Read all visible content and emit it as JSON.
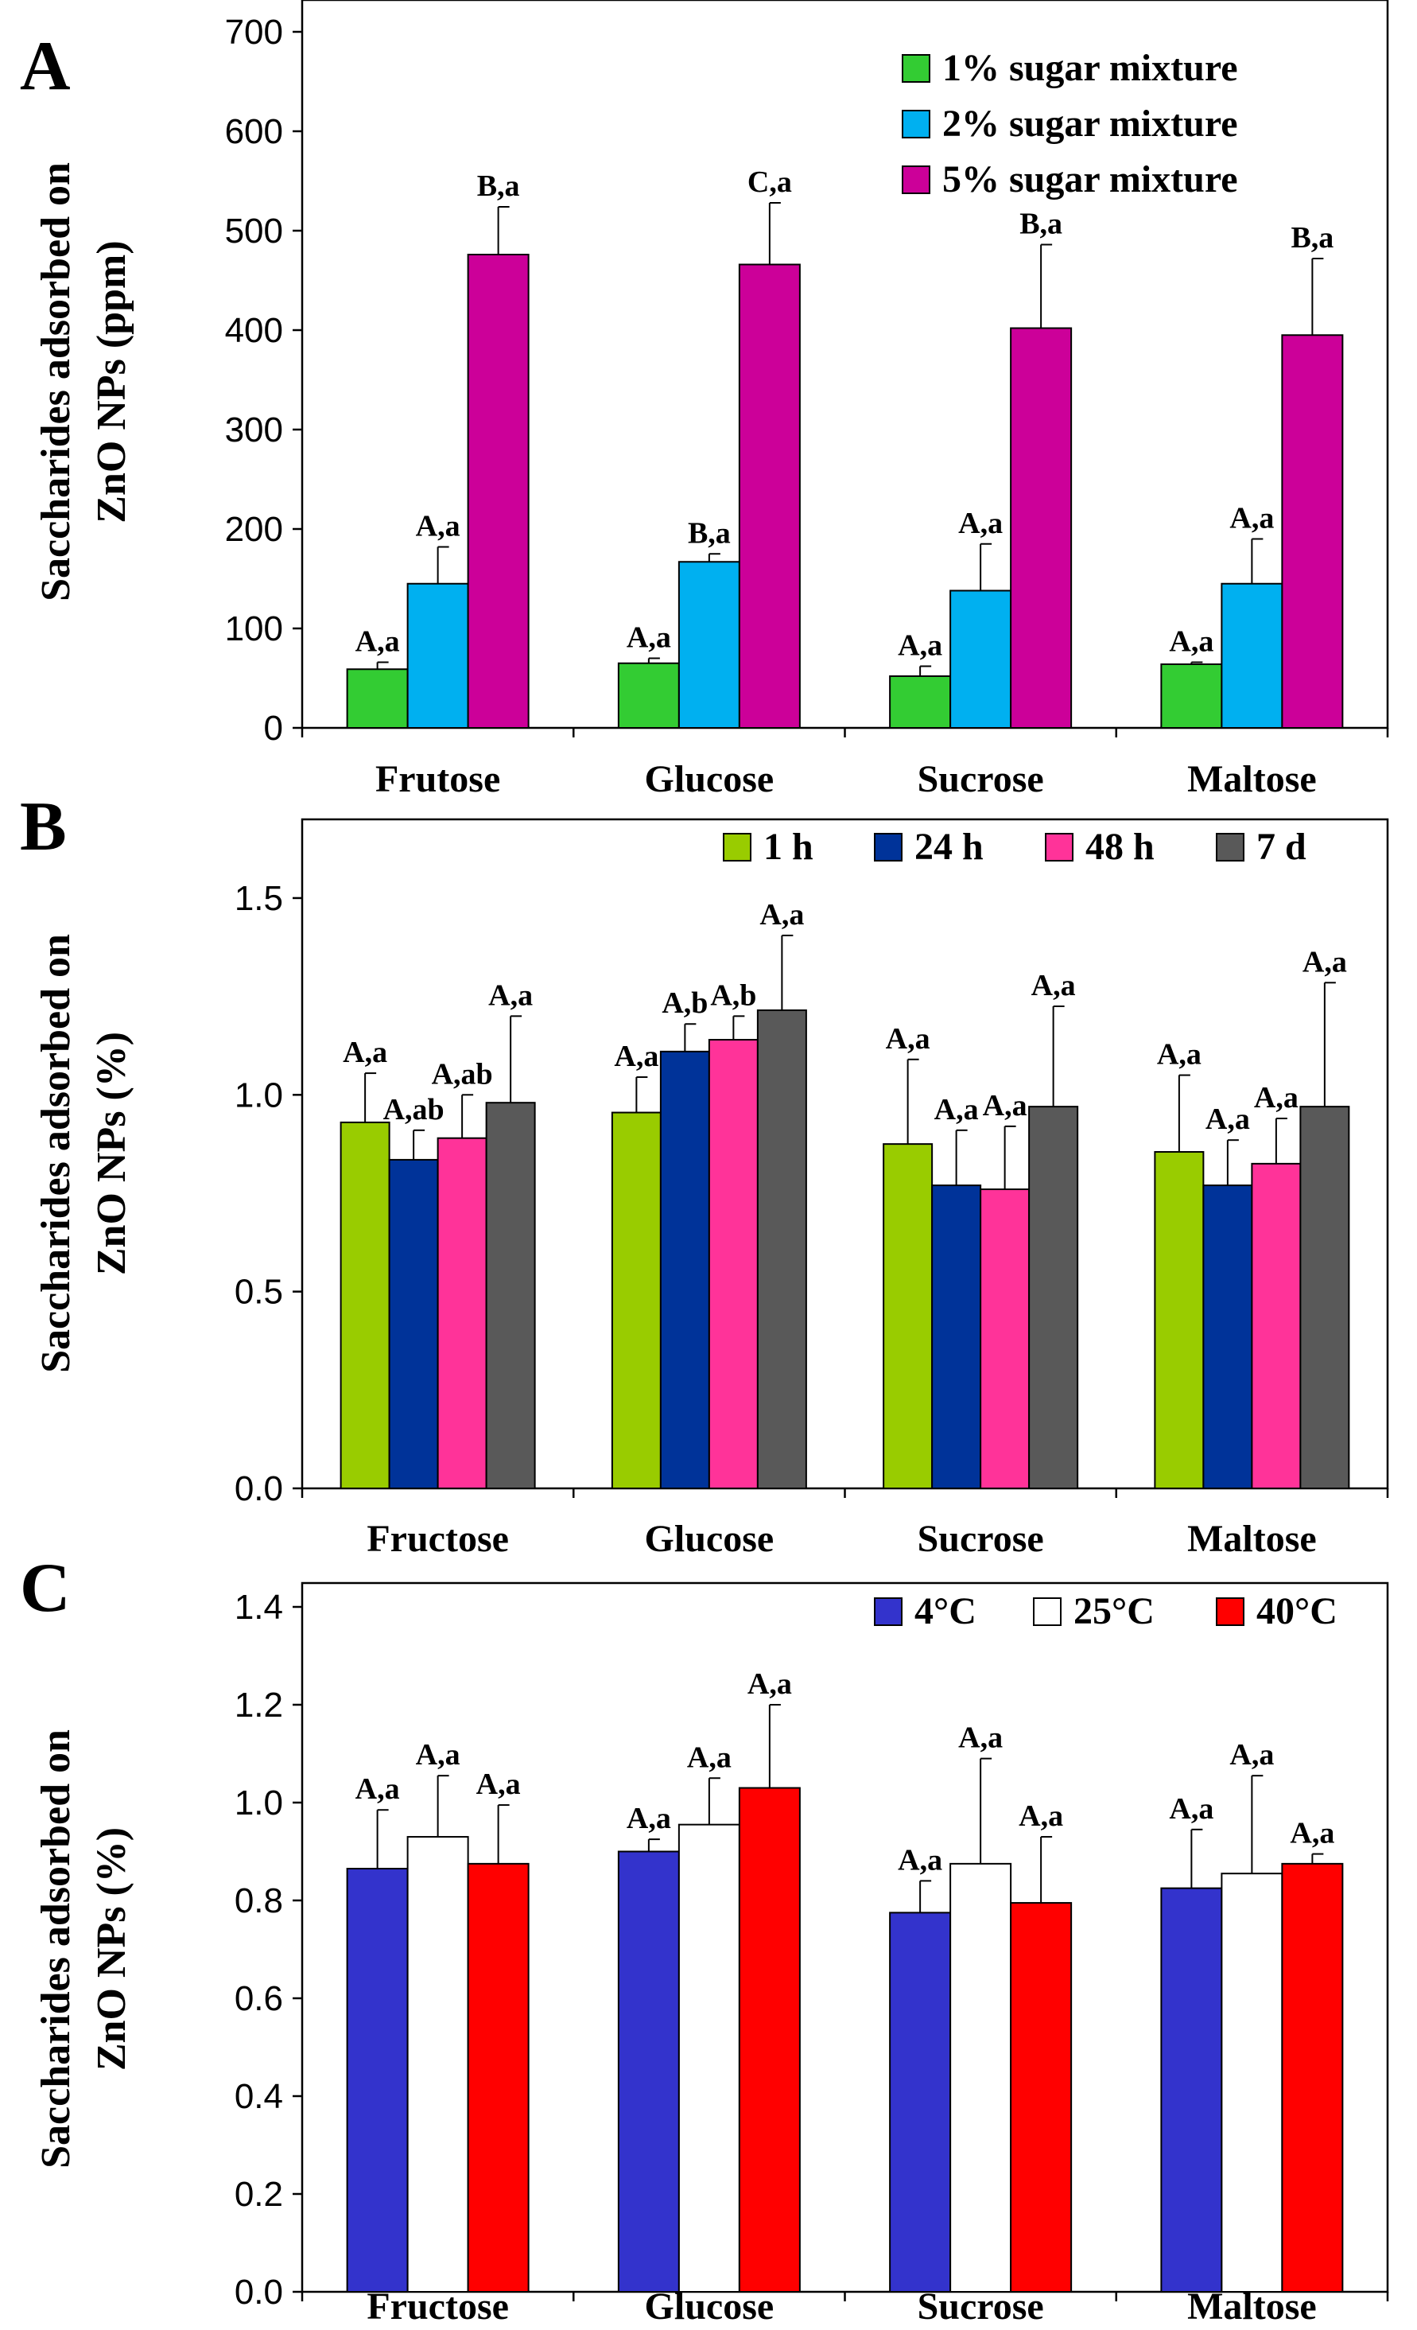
{
  "chart_data": [
    {
      "panel": "A",
      "type": "bar",
      "ylabel_lines": [
        "Saccharides adsorbed on",
        "ZnO NPs (ppm)"
      ],
      "categories": [
        "Frutose",
        "Glucose",
        "Sucrose",
        "Maltose"
      ],
      "ylim": [
        0,
        700
      ],
      "yticks": [
        "0",
        "100",
        "200",
        "300",
        "400",
        "500",
        "600",
        "700"
      ],
      "yticks_values": [
        0,
        100,
        200,
        300,
        400,
        500,
        600,
        700
      ],
      "legend_position": "top-right",
      "series": [
        {
          "name": "1% sugar mixture",
          "color": "#33cc33",
          "values": [
            59,
            65,
            52,
            64
          ],
          "errors": [
            7,
            5,
            10,
            2
          ],
          "labels": [
            "A,a",
            "A,a",
            "A,a",
            "A,a"
          ]
        },
        {
          "name": "2% sugar mixture",
          "color": "#00b0f0",
          "values": [
            145,
            167,
            138,
            145
          ],
          "errors": [
            37,
            8,
            47,
            45
          ],
          "labels": [
            "A,a",
            "B,a",
            "A,a",
            "A,a"
          ]
        },
        {
          "name": "5% sugar mixture",
          "color": "#cc0099",
          "values": [
            476,
            466,
            402,
            395
          ],
          "errors": [
            48,
            62,
            84,
            77
          ],
          "labels": [
            "B,a",
            "C,a",
            "B,a",
            "B,a"
          ]
        }
      ]
    },
    {
      "panel": "B",
      "type": "bar",
      "ylabel_lines": [
        "Saccharides adsorbed on",
        "ZnO NPs (%)"
      ],
      "categories": [
        "Fructose",
        "Glucose",
        "Sucrose",
        "Maltose"
      ],
      "ylim": [
        0,
        1.7
      ],
      "yticks": [
        "0.0",
        "0.5",
        "1.0",
        "1.5"
      ],
      "yticks_values": [
        0,
        0.5,
        1.0,
        1.5
      ],
      "legend_position": "top-right",
      "series": [
        {
          "name": "1 h",
          "color": "#99cc00",
          "values": [
            0.93,
            0.955,
            0.875,
            0.855
          ],
          "errors": [
            0.125,
            0.09,
            0.215,
            0.195
          ],
          "labels": [
            "A,a",
            "A,a",
            "A,a",
            "A,a"
          ]
        },
        {
          "name": "24 h",
          "color": "#003399",
          "values": [
            0.835,
            1.11,
            0.77,
            0.77
          ],
          "errors": [
            0.075,
            0.07,
            0.14,
            0.115
          ],
          "labels": [
            "A,ab",
            "A,b",
            "A,a",
            "A,a"
          ]
        },
        {
          "name": "48 h",
          "color": "#ff3399",
          "values": [
            0.89,
            1.14,
            0.76,
            0.825
          ],
          "errors": [
            0.11,
            0.06,
            0.16,
            0.115
          ],
          "labels": [
            "A,ab",
            "A,b",
            "A,a",
            "A,a"
          ]
        },
        {
          "name": "7 d",
          "color": "#595959",
          "values": [
            0.98,
            1.215,
            0.97,
            0.97
          ],
          "errors": [
            0.22,
            0.19,
            0.255,
            0.315
          ],
          "labels": [
            "A,a",
            "A,a",
            "A,a",
            "A,a"
          ]
        }
      ]
    },
    {
      "panel": "C",
      "type": "bar",
      "ylabel_lines": [
        "Saccharides adsorbed on",
        "ZnO NPs (%)"
      ],
      "categories": [
        "Fructose",
        "Glucose",
        "Sucrose",
        "Maltose"
      ],
      "ylim": [
        0,
        1.4
      ],
      "yticks": [
        "0.0",
        "0.2",
        "0.4",
        "0.6",
        "0.8",
        "1.0",
        "1.2",
        "1.4"
      ],
      "yticks_values": [
        0,
        0.2,
        0.4,
        0.6,
        0.8,
        1.0,
        1.2,
        1.4
      ],
      "legend_position": "top-right",
      "series": [
        {
          "name": "4°C",
          "color": "#3333cc",
          "values": [
            0.865,
            0.9,
            0.775,
            0.825
          ],
          "errors": [
            0.12,
            0.025,
            0.065,
            0.12
          ],
          "labels": [
            "A,a",
            "A,a",
            "A,a",
            "A,a"
          ]
        },
        {
          "name": "25°C",
          "color": "#ffffff",
          "values": [
            0.93,
            0.955,
            0.875,
            0.855
          ],
          "errors": [
            0.125,
            0.095,
            0.215,
            0.2
          ],
          "labels": [
            "A,a",
            "A,a",
            "A,a",
            "A,a"
          ]
        },
        {
          "name": "40°C",
          "color": "#ff0000",
          "values": [
            0.875,
            1.03,
            0.795,
            0.875
          ],
          "errors": [
            0.12,
            0.17,
            0.135,
            0.02
          ],
          "labels": [
            "A,a",
            "A,a",
            "A,a",
            "A,a"
          ]
        }
      ]
    }
  ]
}
